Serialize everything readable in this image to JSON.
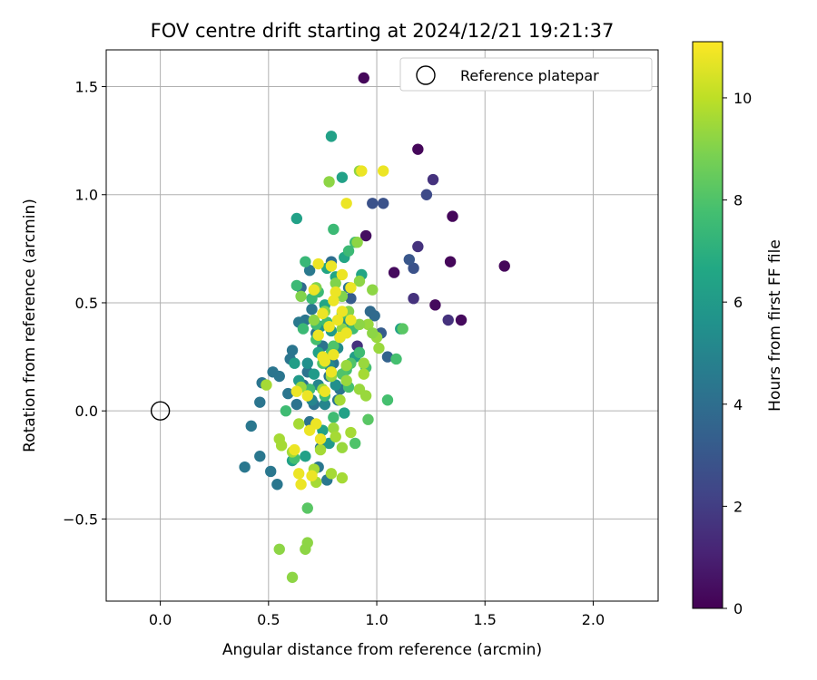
{
  "chart_data": {
    "type": "scatter",
    "title": "FOV centre drift starting at 2024/12/21 19:21:37",
    "xlabel": "Angular distance from reference (arcmin)",
    "ylabel": "Rotation from reference (arcmin)",
    "xlim": [
      -0.25,
      2.3
    ],
    "ylim": [
      -0.88,
      1.67
    ],
    "xticks": [
      0.0,
      0.5,
      1.0,
      1.5,
      2.0
    ],
    "xtick_labels": [
      "0.0",
      "0.5",
      "1.0",
      "1.5",
      "2.0"
    ],
    "yticks": [
      -0.5,
      0.0,
      0.5,
      1.0,
      1.5
    ],
    "ytick_labels": [
      "−0.5",
      "0.0",
      "0.5",
      "1.0",
      "1.5"
    ],
    "grid": true,
    "legend": {
      "placement": "top-right",
      "entries": [
        "Reference platepar"
      ]
    },
    "reference_point": {
      "x": 0.0,
      "y": 0.0
    },
    "colorbar": {
      "label": "Hours from first FF file",
      "colormap": "viridis",
      "range": [
        0,
        11.1
      ],
      "ticks": [
        0,
        2,
        4,
        6,
        8,
        10
      ],
      "tick_labels": [
        "0",
        "2",
        "4",
        "6",
        "8",
        "10"
      ]
    },
    "points": [
      [
        0.94,
        1.54,
        0.2
      ],
      [
        1.19,
        1.21,
        0.2
      ],
      [
        1.35,
        0.9,
        0.2
      ],
      [
        1.59,
        0.67,
        0.2
      ],
      [
        1.34,
        0.69,
        0.2
      ],
      [
        1.08,
        0.64,
        0.3
      ],
      [
        1.39,
        0.42,
        0.3
      ],
      [
        1.27,
        0.49,
        0.3
      ],
      [
        0.95,
        0.81,
        0.4
      ],
      [
        1.26,
        1.07,
        1.6
      ],
      [
        1.19,
        0.76,
        1.6
      ],
      [
        1.17,
        0.52,
        1.6
      ],
      [
        1.33,
        0.42,
        1.6
      ],
      [
        0.91,
        0.3,
        1.6
      ],
      [
        1.23,
        1.0,
        2.5
      ],
      [
        0.98,
        0.96,
        2.8
      ],
      [
        1.03,
        0.96,
        2.8
      ],
      [
        1.17,
        0.66,
        2.8
      ],
      [
        1.15,
        0.7,
        3.0
      ],
      [
        1.02,
        0.36,
        3.2
      ],
      [
        1.05,
        0.25,
        3.5
      ],
      [
        0.88,
        0.52,
        3.2
      ],
      [
        0.79,
        0.69,
        4.0
      ],
      [
        0.65,
        0.57,
        3.8
      ],
      [
        0.97,
        0.46,
        3.8
      ],
      [
        0.99,
        0.44,
        3.8
      ],
      [
        0.39,
        -0.26,
        4.4
      ],
      [
        0.42,
        -0.07,
        4.4
      ],
      [
        0.46,
        -0.21,
        4.4
      ],
      [
        0.51,
        -0.28,
        4.4
      ],
      [
        0.54,
        -0.34,
        4.4
      ],
      [
        0.46,
        0.04,
        4.3
      ],
      [
        0.47,
        0.13,
        4.3
      ],
      [
        0.52,
        0.18,
        4.3
      ],
      [
        0.55,
        0.16,
        4.3
      ],
      [
        0.59,
        0.08,
        4.3
      ],
      [
        0.6,
        0.24,
        4.3
      ],
      [
        0.61,
        0.28,
        4.3
      ],
      [
        0.67,
        0.42,
        4.3
      ],
      [
        0.7,
        0.47,
        4.3
      ],
      [
        0.72,
        0.36,
        4.3
      ],
      [
        0.75,
        0.3,
        4.2
      ],
      [
        0.68,
        0.18,
        4.2
      ],
      [
        0.66,
        0.12,
        4.2
      ],
      [
        0.71,
        0.03,
        4.2
      ],
      [
        0.69,
        -0.05,
        4.2
      ],
      [
        0.74,
        -0.17,
        4.3
      ],
      [
        0.73,
        -0.26,
        4.4
      ],
      [
        0.77,
        -0.32,
        4.4
      ],
      [
        0.8,
        0.22,
        4.3
      ],
      [
        0.83,
        0.1,
        4.3
      ],
      [
        0.86,
        0.43,
        4.2
      ],
      [
        0.87,
        0.57,
        4.2
      ],
      [
        0.63,
        0.03,
        4.2
      ],
      [
        0.78,
        0.16,
        4.2
      ],
      [
        0.82,
        0.05,
        4.3
      ],
      [
        0.69,
        0.65,
        4.5
      ],
      [
        0.64,
        0.41,
        4.5
      ],
      [
        0.79,
        1.27,
        6.3
      ],
      [
        0.84,
        1.08,
        6.3
      ],
      [
        0.63,
        0.89,
        6.3
      ],
      [
        0.77,
        0.66,
        6.5
      ],
      [
        0.81,
        0.62,
        6.5
      ],
      [
        0.85,
        0.71,
        6.5
      ],
      [
        0.76,
        0.49,
        6.5
      ],
      [
        0.73,
        0.27,
        6.3
      ],
      [
        0.83,
        0.34,
        6.2
      ],
      [
        0.9,
        0.25,
        6.2
      ],
      [
        0.62,
        0.22,
        6.2
      ],
      [
        0.64,
        0.14,
        6.0
      ],
      [
        0.71,
        0.17,
        6.0
      ],
      [
        0.79,
        0.37,
        6.0
      ],
      [
        0.93,
        0.63,
        6.5
      ],
      [
        1.11,
        0.38,
        6.3
      ],
      [
        0.75,
        -0.09,
        6.3
      ],
      [
        0.85,
        -0.01,
        6.3
      ],
      [
        0.78,
        -0.15,
        6.0
      ],
      [
        0.61,
        -0.23,
        6.3
      ],
      [
        0.67,
        -0.21,
        6.3
      ],
      [
        0.74,
        0.39,
        5.5
      ],
      [
        0.81,
        0.12,
        5.5
      ],
      [
        0.86,
        0.41,
        5.5
      ],
      [
        0.68,
        0.22,
        5.5
      ],
      [
        0.7,
        0.05,
        5.0
      ],
      [
        0.76,
        0.03,
        5.0
      ],
      [
        0.73,
        0.12,
        5.0
      ],
      [
        0.78,
        0.21,
        5.2
      ],
      [
        0.82,
        0.29,
        5.3
      ],
      [
        0.67,
        0.69,
        7.4
      ],
      [
        0.7,
        0.52,
        7.5
      ],
      [
        0.73,
        0.55,
        7.5
      ],
      [
        0.8,
        0.84,
        7.5
      ],
      [
        0.87,
        0.74,
        7.5
      ],
      [
        0.9,
        0.78,
        7.6
      ],
      [
        0.63,
        0.58,
        7.5
      ],
      [
        0.66,
        0.38,
        7.5
      ],
      [
        0.72,
        0.4,
        7.6
      ],
      [
        0.77,
        0.41,
        7.6
      ],
      [
        0.84,
        0.45,
        7.6
      ],
      [
        0.89,
        0.38,
        7.6
      ],
      [
        0.92,
        0.27,
        7.6
      ],
      [
        0.95,
        0.2,
        7.8
      ],
      [
        0.86,
        0.19,
        7.8
      ],
      [
        0.79,
        0.27,
        7.8
      ],
      [
        0.72,
        0.33,
        7.8
      ],
      [
        0.69,
        0.1,
        7.6
      ],
      [
        0.76,
        0.07,
        7.6
      ],
      [
        0.8,
        -0.03,
        7.6
      ],
      [
        0.87,
        0.11,
        7.8
      ],
      [
        1.05,
        0.05,
        7.8
      ],
      [
        1.09,
        0.24,
        7.8
      ],
      [
        1.12,
        0.38,
        8.2
      ],
      [
        0.96,
        -0.04,
        8.2
      ],
      [
        0.9,
        -0.15,
        8.0
      ],
      [
        0.68,
        -0.45,
        8.2
      ],
      [
        0.62,
        -0.22,
        7.8
      ],
      [
        0.58,
        0.0,
        7.6
      ],
      [
        0.88,
        0.22,
        8.0
      ],
      [
        0.84,
        0.17,
        8.0
      ],
      [
        0.75,
        0.22,
        8.0
      ],
      [
        0.8,
        0.3,
        8.0
      ],
      [
        0.78,
        1.06,
        9.2
      ],
      [
        0.92,
        1.11,
        9.2
      ],
      [
        0.55,
        -0.64,
        9.2
      ],
      [
        0.67,
        -0.64,
        9.2
      ],
      [
        0.68,
        -0.61,
        9.2
      ],
      [
        0.61,
        -0.77,
        9.2
      ],
      [
        0.65,
        0.53,
        9.0
      ],
      [
        0.72,
        0.57,
        9.0
      ],
      [
        0.81,
        0.59,
        9.0
      ],
      [
        0.84,
        0.53,
        9.0
      ],
      [
        0.92,
        0.6,
        9.2
      ],
      [
        0.98,
        0.56,
        9.2
      ],
      [
        0.87,
        0.46,
        9.0
      ],
      [
        0.76,
        0.46,
        9.0
      ],
      [
        0.71,
        0.42,
        9.2
      ],
      [
        0.84,
        0.38,
        9.2
      ],
      [
        0.96,
        0.4,
        9.4
      ],
      [
        1.0,
        0.34,
        9.4
      ],
      [
        1.01,
        0.29,
        9.4
      ],
      [
        0.94,
        0.22,
        9.4
      ],
      [
        0.94,
        0.17,
        9.6
      ],
      [
        0.92,
        0.1,
        9.4
      ],
      [
        0.86,
        0.21,
        9.4
      ],
      [
        0.79,
        0.16,
        9.4
      ],
      [
        0.75,
        0.1,
        9.4
      ],
      [
        0.83,
        0.05,
        9.6
      ],
      [
        0.8,
        -0.08,
        9.4
      ],
      [
        0.81,
        -0.12,
        9.6
      ],
      [
        0.74,
        -0.18,
        9.6
      ],
      [
        0.88,
        -0.1,
        9.6
      ],
      [
        0.84,
        -0.17,
        9.4
      ],
      [
        0.71,
        -0.27,
        9.6
      ],
      [
        0.79,
        -0.29,
        9.6
      ],
      [
        0.84,
        -0.31,
        9.6
      ],
      [
        0.56,
        -0.16,
        9.6
      ],
      [
        0.61,
        -0.19,
        9.6
      ],
      [
        0.64,
        -0.06,
        9.6
      ],
      [
        0.72,
        -0.33,
        9.6
      ],
      [
        0.92,
        0.4,
        9.2
      ],
      [
        0.98,
        0.36,
        9.2
      ],
      [
        0.91,
        0.78,
        9.2
      ],
      [
        0.65,
        0.11,
        9.4
      ],
      [
        0.86,
        0.14,
        9.4
      ],
      [
        0.95,
        0.07,
        9.4
      ],
      [
        0.49,
        0.12,
        9.6
      ],
      [
        0.55,
        -0.13,
        9.6
      ],
      [
        0.86,
        0.96,
        10.8
      ],
      [
        0.93,
        1.11,
        10.8
      ],
      [
        1.03,
        1.11,
        10.8
      ],
      [
        0.73,
        0.68,
        10.8
      ],
      [
        0.79,
        0.67,
        10.8
      ],
      [
        0.84,
        0.63,
        10.8
      ],
      [
        0.71,
        0.56,
        10.8
      ],
      [
        0.75,
        0.45,
        10.8
      ],
      [
        0.8,
        0.51,
        10.8
      ],
      [
        0.84,
        0.46,
        10.8
      ],
      [
        0.88,
        0.42,
        10.8
      ],
      [
        0.78,
        0.39,
        10.8
      ],
      [
        0.83,
        0.34,
        10.8
      ],
      [
        0.86,
        0.36,
        10.8
      ],
      [
        0.73,
        0.35,
        10.8
      ],
      [
        0.82,
        0.42,
        10.8
      ],
      [
        0.8,
        0.26,
        10.8
      ],
      [
        0.76,
        0.23,
        10.8
      ],
      [
        0.79,
        0.18,
        10.8
      ],
      [
        0.75,
        0.25,
        10.8
      ],
      [
        0.76,
        0.09,
        10.8
      ],
      [
        0.72,
        -0.06,
        10.8
      ],
      [
        0.69,
        -0.09,
        10.8
      ],
      [
        0.74,
        -0.13,
        10.8
      ],
      [
        0.65,
        -0.34,
        10.8
      ],
      [
        0.7,
        -0.3,
        10.8
      ],
      [
        0.63,
        0.09,
        10.8
      ],
      [
        0.68,
        0.07,
        10.8
      ],
      [
        0.64,
        -0.29,
        10.8
      ],
      [
        0.62,
        -0.18,
        10.8
      ],
      [
        0.88,
        0.57,
        10.8
      ],
      [
        0.81,
        0.55,
        10.8
      ]
    ]
  }
}
